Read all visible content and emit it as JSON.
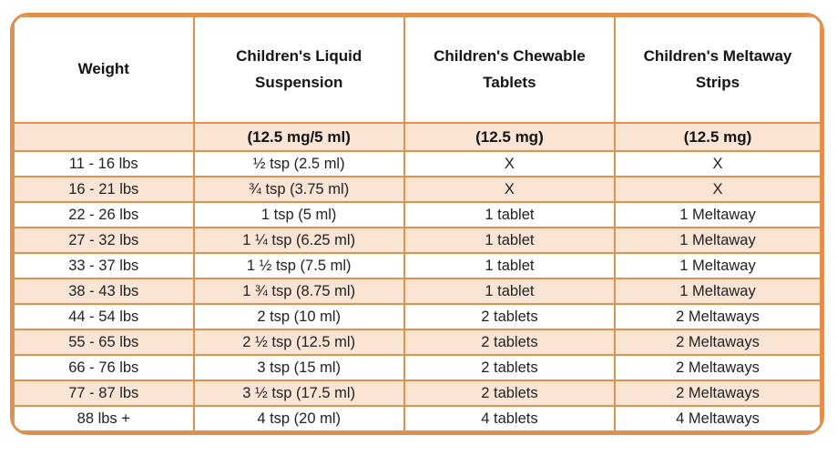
{
  "chart_data": {
    "type": "table",
    "columns": [
      {
        "label": "Weight",
        "sub": ""
      },
      {
        "label": "Children's Liquid Suspension",
        "sub": "(12.5 mg/5 ml)"
      },
      {
        "label": "Children's Chewable Tablets",
        "sub": "(12.5 mg)"
      },
      {
        "label": "Children's Meltaway Strips",
        "sub": "(12.5 mg)"
      }
    ],
    "rows": [
      [
        "11 - 16 lbs",
        "½ tsp (2.5 ml)",
        "X",
        "X"
      ],
      [
        "16 - 21 lbs",
        "¾ tsp (3.75 ml)",
        "X",
        "X"
      ],
      [
        "22 - 26 lbs",
        "1 tsp (5 ml)",
        "1 tablet",
        "1 Meltaway"
      ],
      [
        "27 - 32 lbs",
        "1 ¼ tsp (6.25 ml)",
        "1 tablet",
        "1 Meltaway"
      ],
      [
        "33 - 37 lbs",
        "1 ½ tsp (7.5 ml)",
        "1 tablet",
        "1 Meltaway"
      ],
      [
        "38 - 43 lbs",
        "1 ¾ tsp (8.75 ml)",
        "1 tablet",
        "1 Meltaway"
      ],
      [
        "44 - 54 lbs",
        "2 tsp (10 ml)",
        "2 tablets",
        "2 Meltaways"
      ],
      [
        "55 - 65 lbs",
        "2 ½ tsp (12.5 ml)",
        "2 tablets",
        "2 Meltaways"
      ],
      [
        "66 - 76 lbs",
        "3 tsp (15 ml)",
        "2 tablets",
        "2 Meltaways"
      ],
      [
        "77 - 87 lbs",
        "3 ½ tsp (17.5 ml)",
        "2 tablets",
        "2 Meltaways"
      ],
      [
        "88 lbs +",
        "4 tsp (20 ml)",
        "4 tablets",
        "4 Meltaways"
      ]
    ]
  },
  "colors": {
    "border": "#E0914E",
    "row_shaded": "#FAE4D4",
    "row_plain": "#FFFFFF",
    "text": "#1C1C1C"
  }
}
